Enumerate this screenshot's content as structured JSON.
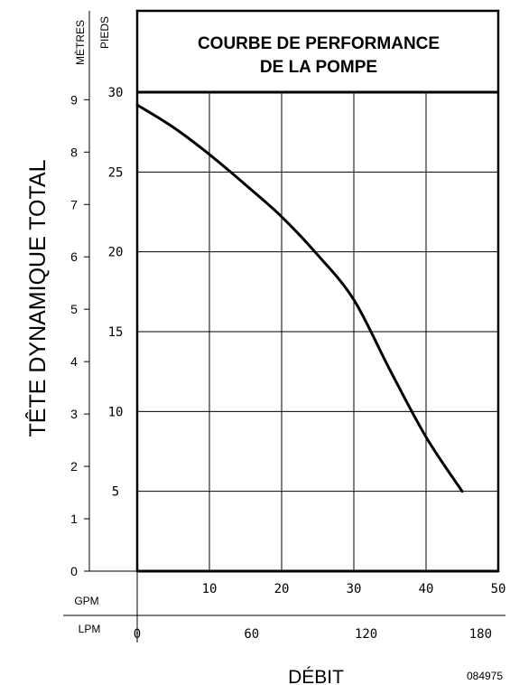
{
  "chart_data": {
    "type": "line",
    "title_lines": [
      "COURBE DE PERFORMANCE",
      "DE LA POMPE"
    ],
    "ylabel": "TÊTE DYNAMIQUE TOTAL",
    "xlabel": "DÉBIT",
    "y_feet_unit": "PIEDS",
    "y_meters_unit": "MÈTRES",
    "x_gpm_unit": "GPM",
    "x_lpm_unit": "LPM",
    "code": "084975",
    "xlim": [
      0,
      50
    ],
    "ylim": [
      0,
      30
    ],
    "x_gpm_ticks": [
      "10",
      "20",
      "30",
      "40",
      "50"
    ],
    "x_lpm_ticks": [
      "0",
      "60",
      "120",
      "180"
    ],
    "y_feet_ticks": [
      "5",
      "10",
      "15",
      "20",
      "25",
      "30"
    ],
    "y_meter_ticks": [
      "0",
      "1",
      "2",
      "3",
      "4",
      "5",
      "6",
      "7",
      "8",
      "9"
    ],
    "grid": true,
    "series": [
      {
        "x": [
          0,
          5,
          10,
          15,
          20,
          25,
          30,
          35,
          40,
          45
        ],
        "y": [
          29.2,
          27.8,
          26.1,
          24.2,
          22.2,
          19.8,
          17.0,
          12.6,
          8.4,
          5.0
        ]
      }
    ]
  }
}
